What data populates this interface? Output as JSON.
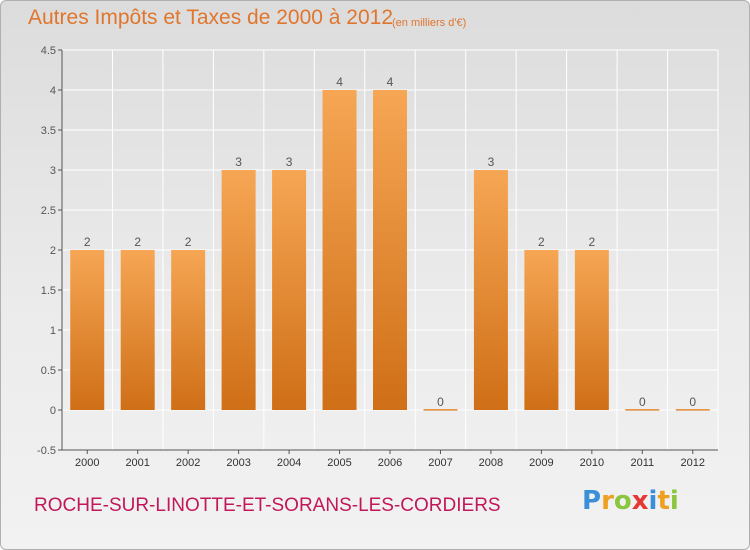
{
  "title": "Autres Impôts et Taxes de 2000 à 2012",
  "subtitle": "(en milliers d'€)",
  "commune": "ROCHE-SUR-LINOTTE-ET-SORANS-LES-CORDIERS",
  "brand": {
    "letters": [
      "P",
      "r",
      "o",
      "x",
      "i",
      "t",
      "i"
    ],
    "colors": [
      "#3a8fd8",
      "#f0a020",
      "#8cc63f",
      "#e53935",
      "#3a8fd8",
      "#f0a020",
      "#8cc63f"
    ]
  },
  "colors": {
    "bar_light": "#f6a654",
    "bar_dark": "#cf6f17",
    "title": "#e0762e",
    "commune": "#c2185b",
    "axis": "#555555",
    "grid": "#ffffff"
  },
  "chart_data": {
    "type": "bar",
    "categories": [
      "2000",
      "2001",
      "2002",
      "2003",
      "2004",
      "2005",
      "2006",
      "2007",
      "2008",
      "2009",
      "2010",
      "2011",
      "2012"
    ],
    "values": [
      2,
      2,
      2,
      3,
      3,
      4,
      4,
      0,
      3,
      2,
      2,
      0,
      0
    ],
    "data_labels": [
      "2",
      "2",
      "2",
      "3",
      "3",
      "4",
      "4",
      "0",
      "3",
      "2",
      "2",
      "0",
      "0"
    ],
    "yticks": [
      "4.5",
      "4",
      "3.5",
      "3",
      "2.5",
      "2",
      "1.5",
      "1",
      "0.5",
      "0",
      "-0.5"
    ],
    "ylim": [
      -0.5,
      4.5
    ],
    "grid": true,
    "legend": "none"
  }
}
